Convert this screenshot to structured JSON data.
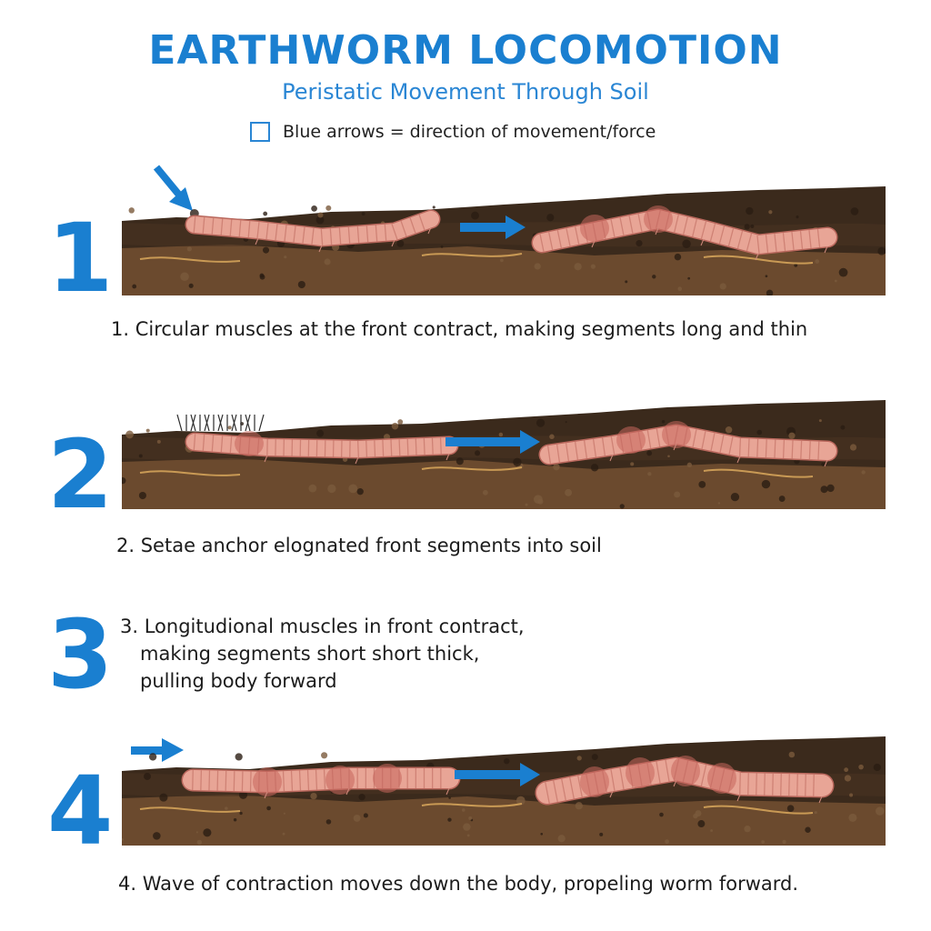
{
  "title": "EARTHWORM LOCOMOTION",
  "subtitle": "Peristatic Movement Through Soil",
  "legend": {
    "text": "Blue arrows = direction of movement/force"
  },
  "steps": [
    {
      "number": "1",
      "caption": "1. Circular muscles at the front contract, making segments long and thin"
    },
    {
      "number": "2",
      "caption": "2. Setae anchor elognated front segments into soil"
    },
    {
      "number": "3",
      "caption_lines": [
        "3. Longitudional muscles in front contract,",
        "making segments short short thick,",
        "pulling body forward"
      ]
    },
    {
      "number": "4",
      "caption": "4. Wave of contraction moves down the body, propeling worm forward."
    }
  ],
  "colors": {
    "accent": "#1a7fd0",
    "soil_top": "#3b2a1c",
    "soil_bottom": "#6b4a2e",
    "worm": "#e8a596",
    "worm_band": "#c7665c"
  }
}
